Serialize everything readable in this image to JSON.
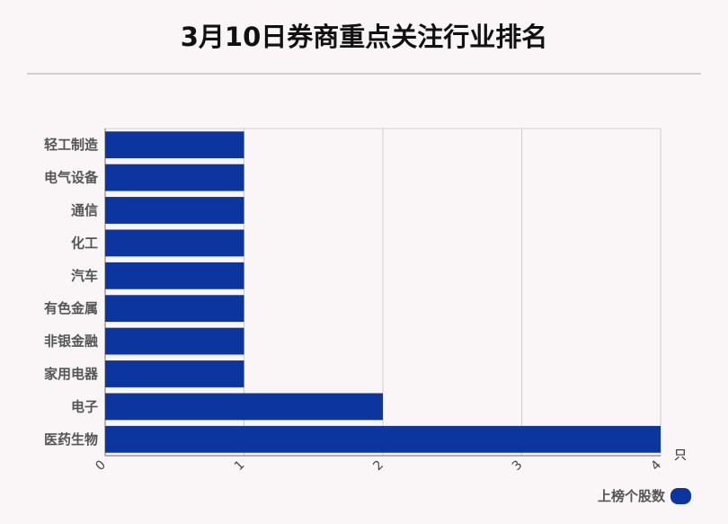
{
  "title": "3月10日券商重点关注行业排名",
  "chart_data": {
    "type": "bar",
    "orientation": "horizontal",
    "categories": [
      "轻工制造",
      "电气设备",
      "通信",
      "化工",
      "汽车",
      "有色金属",
      "非银金融",
      "家用电器",
      "电子",
      "医药生物"
    ],
    "series": [
      {
        "name": "上榜个股数",
        "values": [
          1,
          1,
          1,
          1,
          1,
          1,
          1,
          1,
          2,
          4
        ]
      }
    ],
    "xlim": [
      0,
      4
    ],
    "xticks": [
      "0",
      "1",
      "2",
      "3",
      "4"
    ],
    "xunit": "只",
    "grid": true,
    "legend": "bottom-right",
    "bar_color": "#0d35a0"
  }
}
